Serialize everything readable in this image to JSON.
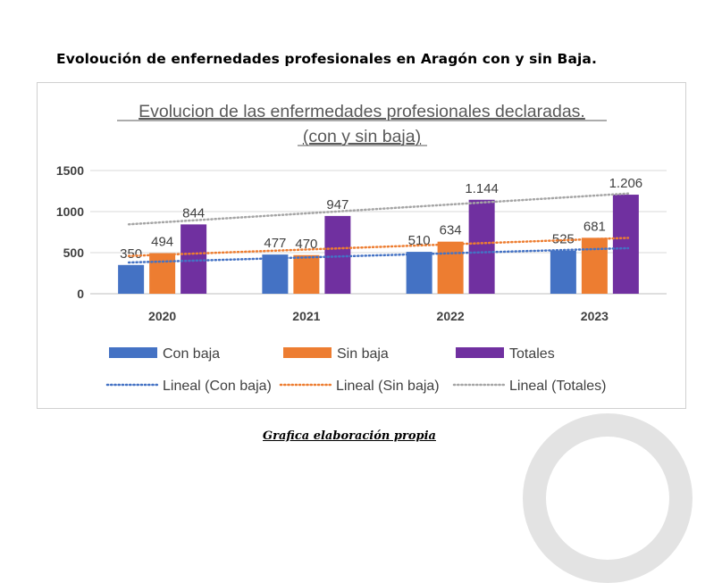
{
  "document": {
    "heading": "Evoloución de enfernedades profesionales en Aragón con y sin Baja.",
    "caption": "Grafica elaboración propia"
  },
  "chart_data": {
    "type": "bar",
    "title_line1": "Evolucion de las enfermedades profesionales declaradas.",
    "title_line2": "(con y sin baja)",
    "categories": [
      "2020",
      "2021",
      "2022",
      "2023"
    ],
    "ylim": [
      0,
      1500
    ],
    "yticks": [
      "0",
      "500",
      "1000",
      "1500"
    ],
    "ytick_values": [
      0,
      500,
      1000,
      1500
    ],
    "grid": true,
    "legend_position": "bottom",
    "series": [
      {
        "name": "Con baja",
        "color": "#4472c4",
        "values": [
          350,
          477,
          510,
          525
        ],
        "labels": [
          "350",
          "477",
          "510",
          "525"
        ]
      },
      {
        "name": "Sin baja",
        "color": "#ed7d31",
        "values": [
          494,
          470,
          634,
          681
        ],
        "labels": [
          "494",
          "470",
          "634",
          "681"
        ]
      },
      {
        "name": "Totales",
        "color": "#7030a0",
        "values": [
          844,
          947,
          1144,
          1206
        ],
        "labels": [
          "844",
          "947",
          "1.144",
          "1.206"
        ]
      }
    ],
    "trendlines": [
      {
        "name": "Lineal (Con baja)",
        "color": "#4472c4",
        "start": 380,
        "end": 555
      },
      {
        "name": "Lineal (Sin baja)",
        "color": "#ed7d31",
        "start": 460,
        "end": 680
      },
      {
        "name": "Lineal (Totales)",
        "color": "#a5a5a5",
        "start": 845,
        "end": 1220
      }
    ]
  }
}
